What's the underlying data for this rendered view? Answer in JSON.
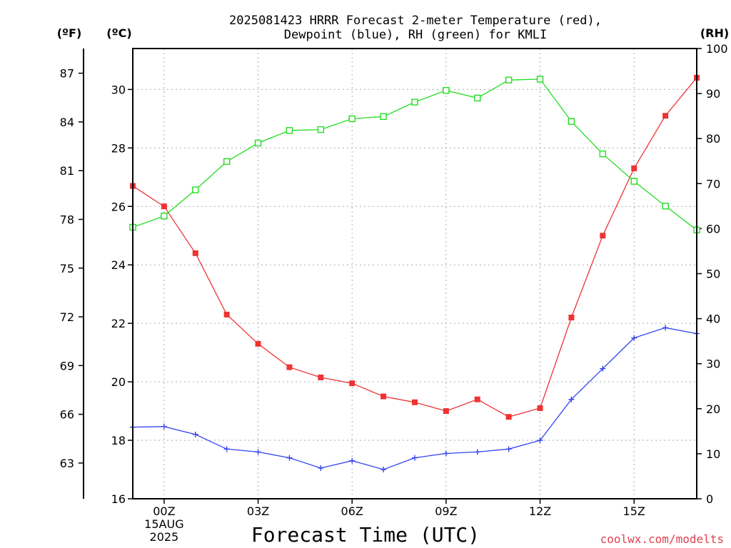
{
  "chart_data": {
    "type": "line",
    "title_lines": [
      "2025081423 HRRR Forecast 2-meter Temperature (red),",
      "Dewpoint (blue), RH (green) for KMLI"
    ],
    "xlabel": "Forecast Time (UTC)",
    "credit": "coolwx.com/modelts",
    "unit_labels": {
      "fahrenheit": "(ºF)",
      "celsius": "(ºC)",
      "rh": "(RH)"
    },
    "x_range": [
      -1,
      17
    ],
    "x_ticks": [
      {
        "x": 0,
        "lines": [
          "00Z",
          "15AUG",
          "2025"
        ]
      },
      {
        "x": 3,
        "lines": [
          "03Z"
        ]
      },
      {
        "x": 6,
        "lines": [
          "06Z"
        ]
      },
      {
        "x": 9,
        "lines": [
          "09Z"
        ]
      },
      {
        "x": 12,
        "lines": [
          "12Z"
        ]
      },
      {
        "x": 15,
        "lines": [
          "15Z"
        ]
      }
    ],
    "celsius_axis": {
      "min": 16,
      "max": 31.4,
      "ticks": [
        16,
        18,
        20,
        22,
        24,
        26,
        28,
        30
      ]
    },
    "fahrenheit_axis": {
      "ticks": [
        63,
        66,
        69,
        72,
        75,
        78,
        81,
        84,
        87
      ]
    },
    "rh_axis": {
      "min": 0,
      "max": 100,
      "ticks": [
        0,
        10,
        20,
        30,
        40,
        50,
        60,
        70,
        80,
        90,
        100
      ]
    },
    "grid": true,
    "x": [
      -1,
      0,
      1,
      2,
      3,
      4,
      5,
      6,
      7,
      8,
      9,
      10,
      11,
      12,
      13,
      14,
      15,
      16,
      17
    ],
    "series": [
      {
        "key": "temperature",
        "axis": "celsius",
        "color": "#ee3333",
        "marker": "filled-square",
        "values": [
          26.7,
          26.0,
          24.4,
          22.3,
          21.3,
          20.5,
          20.15,
          19.95,
          19.5,
          19.3,
          19.0,
          19.4,
          18.8,
          19.1,
          22.2,
          25.0,
          27.3,
          29.1,
          30.4
        ]
      },
      {
        "key": "dewpoint",
        "axis": "celsius",
        "color": "#3344ee",
        "marker": "plus",
        "values": [
          18.45,
          18.47,
          18.2,
          17.7,
          17.6,
          17.4,
          17.05,
          17.3,
          17.0,
          17.4,
          17.55,
          17.6,
          17.7,
          18.0,
          19.4,
          20.45,
          21.5,
          21.85,
          21.65
        ]
      },
      {
        "key": "rh",
        "axis": "rh",
        "color": "#22dd22",
        "marker": "open-square",
        "values": [
          60.3,
          62.8,
          68.6,
          74.9,
          79.0,
          81.8,
          82.0,
          84.4,
          84.9,
          88.1,
          90.7,
          89.0,
          93.0,
          93.2,
          83.8,
          76.6,
          70.5,
          65.0,
          59.7
        ]
      }
    ]
  }
}
